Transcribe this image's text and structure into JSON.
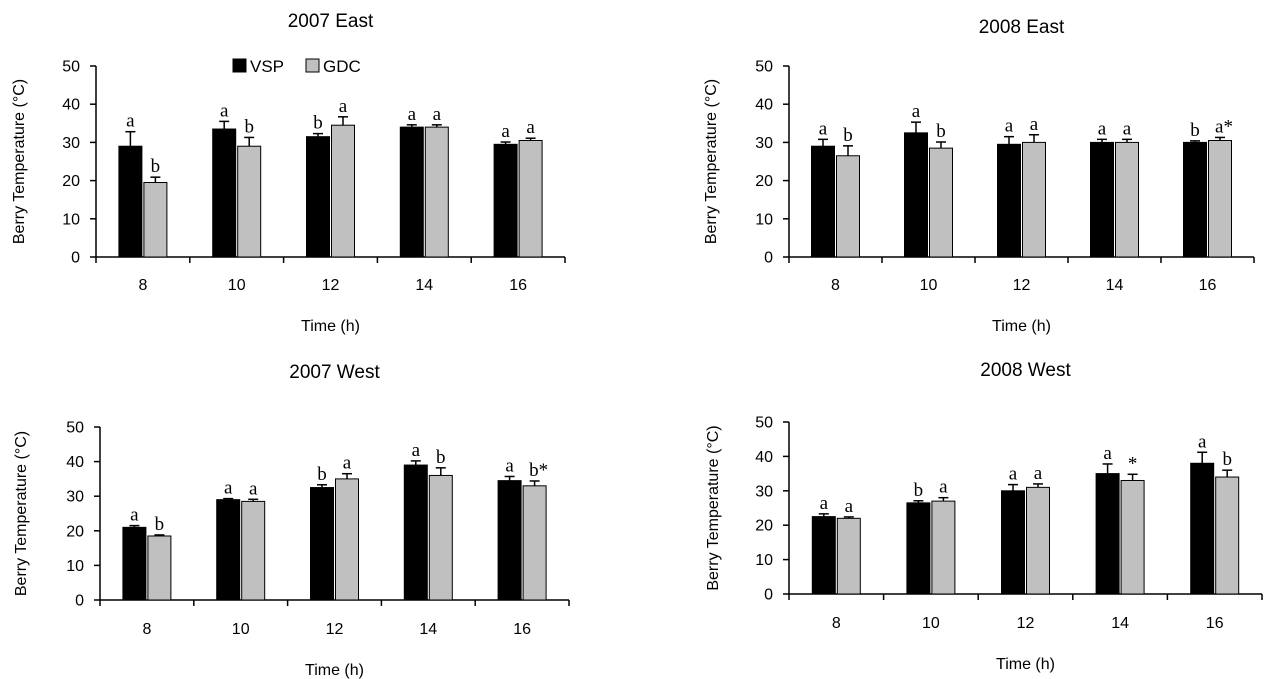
{
  "legend": {
    "items": [
      {
        "name": "VSP",
        "color": "#000000"
      },
      {
        "name": "GDC",
        "color": "#c0c0c0"
      }
    ]
  },
  "colors": {
    "VSP": "#000000",
    "GDC": "#c0c0c0",
    "axis": "#000000"
  },
  "chart_data": [
    {
      "type": "bar",
      "title": "2007 East",
      "xlabel": "Time (h)",
      "ylabel": "Berry Temperature  (°C)",
      "ylim": [
        0,
        50
      ],
      "yticks": [
        0,
        10,
        20,
        30,
        40,
        50
      ],
      "categories": [
        "8",
        "10",
        "12",
        "14",
        "16"
      ],
      "series": [
        {
          "name": "VSP",
          "values": [
            29,
            33.5,
            31.5,
            34,
            29.5
          ],
          "errors": [
            3.8,
            2,
            0.8,
            0.6,
            0.6
          ]
        },
        {
          "name": "GDC",
          "values": [
            19.5,
            29,
            34.5,
            34,
            30.5
          ],
          "errors": [
            1.4,
            2.3,
            2.2,
            0.6,
            0.6
          ]
        }
      ],
      "annotations": [
        [
          "a",
          "b"
        ],
        [
          "a",
          "b"
        ],
        [
          "b",
          "a"
        ],
        [
          "a",
          "a"
        ],
        [
          "a",
          "a"
        ]
      ]
    },
    {
      "type": "bar",
      "title": "2008 East",
      "xlabel": "Time (h)",
      "ylabel": "Berry Temperature  (°C)",
      "ylim": [
        0,
        50
      ],
      "yticks": [
        0,
        10,
        20,
        30,
        40,
        50
      ],
      "categories": [
        "8",
        "10",
        "12",
        "14",
        "16"
      ],
      "series": [
        {
          "name": "VSP",
          "values": [
            29,
            32.5,
            29.5,
            30,
            30
          ],
          "errors": [
            1.8,
            2.8,
            2,
            0.8,
            0.4
          ]
        },
        {
          "name": "GDC",
          "values": [
            26.5,
            28.5,
            30,
            30,
            30.5
          ],
          "errors": [
            2.6,
            1.6,
            2,
            0.8,
            0.8
          ]
        }
      ],
      "annotations": [
        [
          "a",
          "b"
        ],
        [
          "a",
          "b"
        ],
        [
          "a",
          "a"
        ],
        [
          "a",
          "a"
        ],
        [
          "b",
          "a*"
        ]
      ]
    },
    {
      "type": "bar",
      "title": "2007 West",
      "xlabel": "Time (h)",
      "ylabel": "Berry Temperature  (°C)",
      "ylim": [
        0,
        50
      ],
      "yticks": [
        0,
        10,
        20,
        30,
        40,
        50
      ],
      "categories": [
        "8",
        "10",
        "12",
        "14",
        "16"
      ],
      "series": [
        {
          "name": "VSP",
          "values": [
            21,
            29,
            32.5,
            39,
            34.5
          ],
          "errors": [
            0.5,
            0.3,
            0.8,
            1.2,
            1.2
          ]
        },
        {
          "name": "GDC",
          "values": [
            18.5,
            28.5,
            35,
            36,
            33
          ],
          "errors": [
            0.3,
            0.6,
            1.5,
            2.2,
            1.4
          ]
        }
      ],
      "annotations": [
        [
          "a",
          "b"
        ],
        [
          "a",
          "a"
        ],
        [
          "b",
          "a"
        ],
        [
          "a",
          "b"
        ],
        [
          "a",
          "b*"
        ]
      ]
    },
    {
      "type": "bar",
      "title": "2008 West",
      "xlabel": "Time (h)",
      "ylabel": "Berry Temperature  (°C)",
      "ylim": [
        0,
        50
      ],
      "yticks": [
        0,
        10,
        20,
        30,
        40,
        50
      ],
      "categories": [
        "8",
        "10",
        "12",
        "14",
        "16"
      ],
      "series": [
        {
          "name": "VSP",
          "values": [
            22.5,
            26.5,
            30,
            35,
            38
          ],
          "errors": [
            0.8,
            0.6,
            1.8,
            2.8,
            3.2
          ]
        },
        {
          "name": "GDC",
          "values": [
            22,
            27,
            31,
            33,
            34
          ],
          "errors": [
            0.4,
            1,
            1,
            1.8,
            2
          ]
        }
      ],
      "annotations": [
        [
          "a",
          "a"
        ],
        [
          "b",
          "a"
        ],
        [
          "a",
          "a"
        ],
        [
          "a",
          "*"
        ],
        [
          "a",
          "b"
        ]
      ]
    }
  ]
}
